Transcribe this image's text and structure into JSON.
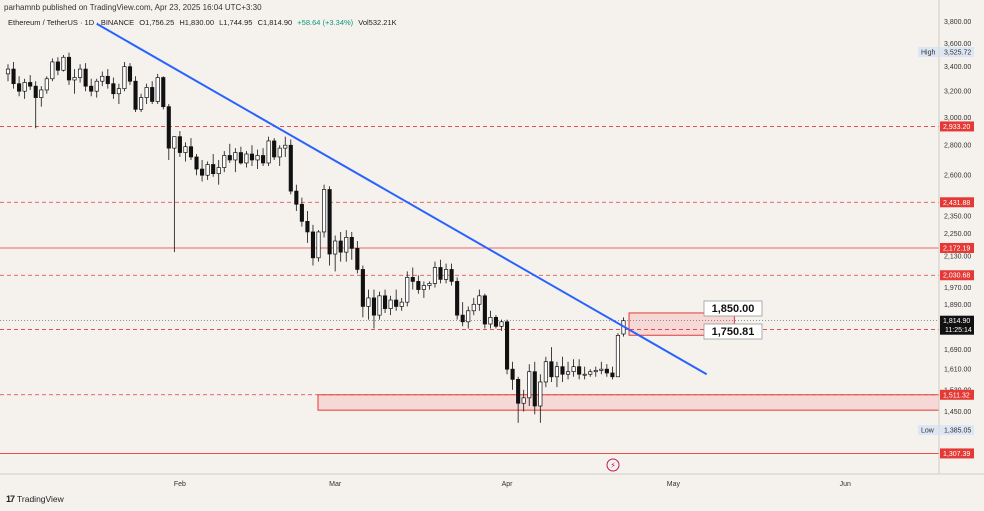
{
  "header": {
    "published": "parhamnb published on TradingView.com, Apr 23, 2025 16:04 UTC+3:30"
  },
  "symbol": {
    "pair": "Ethereum / TetherUS · 1D · BINANCE",
    "open": "O1,756.25",
    "high": "H1,830.00",
    "low": "L1,744.95",
    "close": "C1,814.90",
    "change": "+58.64 (+3.34%)",
    "volume": "Vol532.21K"
  },
  "footer": {
    "brand": "TradingView",
    "logo": "tradingview-logo-icon"
  },
  "colors": {
    "up": "#089981",
    "down": "#000000",
    "trend": "#2962ff",
    "level": "#e53935",
    "zone_fill": "#f7c6c6",
    "background": "#f5f2ed"
  },
  "chart_data": {
    "type": "candlestick",
    "ylim": [
      1280,
      3950
    ],
    "y_ticks": [
      1385.05,
      1450,
      1530,
      1610,
      1690,
      1776.22,
      1814.9,
      1890,
      1970,
      2030.68,
      2130,
      2172.19,
      2250,
      2350,
      2431.88,
      2600,
      2800,
      2933.2,
      3000,
      3200,
      3400,
      3525.72,
      3600,
      3800
    ],
    "y_tick_labels": [
      "1,385.05",
      "1,450.00",
      "1,530.00",
      "1,610.00",
      "1,690.00",
      "1,776.22",
      "1,814.90",
      "1,890.00",
      "1,970.00",
      "2,030.68",
      "2,130.00",
      "2,172.19",
      "2,250.00",
      "2,350.00",
      "2,431.88",
      "2,600.00",
      "2,800.00",
      "2,933.20",
      "3,000.00",
      "3,200.00",
      "3,400.00",
      "3,525.72",
      "3,600.00",
      "3,800.00"
    ],
    "x_labels": [
      "Feb",
      "Mar",
      "Apr",
      "May",
      "Jun"
    ],
    "x_label_day_index": [
      31,
      59,
      90,
      120,
      151
    ],
    "price_tags": {
      "current": {
        "value": 1814.9,
        "label": "1,814.90",
        "countdown": "11:25:14"
      },
      "high": {
        "value": 3525.72,
        "label": "3,525.72",
        "caption": "High"
      },
      "low": {
        "value": 1385.05,
        "label": "1,385.05",
        "caption": "Low"
      }
    },
    "levels": [
      {
        "value": 2933.2,
        "label": "2,933.20",
        "style": "dashed"
      },
      {
        "value": 2431.88,
        "label": "2,431.88",
        "style": "dashed"
      },
      {
        "value": 2172.19,
        "label": "2,172.19",
        "style": "solid"
      },
      {
        "value": 2030.68,
        "label": "2,030.68",
        "style": "dashed"
      },
      {
        "value": 1776.22,
        "label": "1,776.22",
        "style": "dashed"
      },
      {
        "value": 1511.32,
        "label": "1,511.32",
        "style": "dashed"
      },
      {
        "value": 1307.39,
        "label": "1,307.39",
        "style": "solid"
      }
    ],
    "annotations": [
      {
        "text": "1,850.00",
        "value": 1850
      },
      {
        "text": "1,750.81",
        "value": 1750.81
      }
    ],
    "zones": [
      {
        "name": "resistance",
        "from_day": 112,
        "to_day": 131,
        "low": 1750.81,
        "high": 1850
      },
      {
        "name": "support",
        "from_day": 55,
        "to_day": 170,
        "low": 1455,
        "high": 1511.32
      }
    ],
    "trendline": {
      "x": [
        16,
        126
      ],
      "y": [
        3780,
        1590
      ]
    },
    "start_day": 0,
    "candles": [
      [
        3340,
        3420,
        3280,
        3380
      ],
      [
        3380,
        3440,
        3220,
        3260
      ],
      [
        3260,
        3320,
        3160,
        3200
      ],
      [
        3200,
        3300,
        3140,
        3270
      ],
      [
        3270,
        3330,
        3210,
        3240
      ],
      [
        3240,
        3280,
        2920,
        3150
      ],
      [
        3150,
        3240,
        3080,
        3210
      ],
      [
        3210,
        3320,
        3180,
        3300
      ],
      [
        3300,
        3470,
        3280,
        3440
      ],
      [
        3440,
        3480,
        3330,
        3370
      ],
      [
        3370,
        3500,
        3360,
        3480
      ],
      [
        3480,
        3520,
        3250,
        3290
      ],
      [
        3290,
        3380,
        3180,
        3310
      ],
      [
        3310,
        3420,
        3270,
        3380
      ],
      [
        3380,
        3430,
        3200,
        3240
      ],
      [
        3240,
        3300,
        3160,
        3200
      ],
      [
        3200,
        3300,
        3150,
        3280
      ],
      [
        3280,
        3360,
        3240,
        3320
      ],
      [
        3320,
        3380,
        3220,
        3260
      ],
      [
        3260,
        3310,
        3140,
        3180
      ],
      [
        3180,
        3260,
        3100,
        3220
      ],
      [
        3220,
        3440,
        3200,
        3400
      ],
      [
        3400,
        3430,
        3250,
        3280
      ],
      [
        3280,
        3320,
        3040,
        3060
      ],
      [
        3060,
        3180,
        3040,
        3150
      ],
      [
        3150,
        3260,
        3100,
        3230
      ],
      [
        3230,
        3280,
        3100,
        3120
      ],
      [
        3120,
        3340,
        3100,
        3310
      ],
      [
        3310,
        3320,
        3060,
        3080
      ],
      [
        3080,
        3100,
        2700,
        2780
      ],
      [
        2780,
        2860,
        2150,
        2860
      ],
      [
        2860,
        2900,
        2720,
        2750
      ],
      [
        2750,
        2820,
        2690,
        2790
      ],
      [
        2790,
        2850,
        2700,
        2720
      ],
      [
        2720,
        2740,
        2600,
        2640
      ],
      [
        2640,
        2700,
        2560,
        2600
      ],
      [
        2600,
        2690,
        2570,
        2670
      ],
      [
        2670,
        2740,
        2590,
        2610
      ],
      [
        2610,
        2700,
        2540,
        2650
      ],
      [
        2650,
        2760,
        2620,
        2730
      ],
      [
        2730,
        2810,
        2680,
        2700
      ],
      [
        2700,
        2780,
        2620,
        2750
      ],
      [
        2750,
        2790,
        2670,
        2680
      ],
      [
        2680,
        2760,
        2650,
        2740
      ],
      [
        2740,
        2800,
        2660,
        2700
      ],
      [
        2700,
        2770,
        2640,
        2730
      ],
      [
        2730,
        2780,
        2660,
        2680
      ],
      [
        2680,
        2860,
        2660,
        2830
      ],
      [
        2830,
        2850,
        2700,
        2720
      ],
      [
        2720,
        2800,
        2660,
        2780
      ],
      [
        2780,
        2860,
        2720,
        2800
      ],
      [
        2800,
        2840,
        2480,
        2500
      ],
      [
        2500,
        2540,
        2380,
        2420
      ],
      [
        2420,
        2460,
        2290,
        2320
      ],
      [
        2320,
        2380,
        2200,
        2260
      ],
      [
        2260,
        2300,
        2080,
        2120
      ],
      [
        2120,
        2270,
        2100,
        2260
      ],
      [
        2260,
        2540,
        2230,
        2510
      ],
      [
        2510,
        2530,
        2080,
        2140
      ],
      [
        2140,
        2240,
        2050,
        2210
      ],
      [
        2210,
        2260,
        2100,
        2150
      ],
      [
        2150,
        2270,
        2100,
        2230
      ],
      [
        2230,
        2260,
        2110,
        2170
      ],
      [
        2170,
        2210,
        2040,
        2060
      ],
      [
        2060,
        2080,
        1830,
        1880
      ],
      [
        1880,
        1960,
        1820,
        1920
      ],
      [
        1920,
        1960,
        1780,
        1840
      ],
      [
        1840,
        1950,
        1820,
        1930
      ],
      [
        1930,
        1960,
        1850,
        1870
      ],
      [
        1870,
        1930,
        1840,
        1910
      ],
      [
        1910,
        1960,
        1860,
        1880
      ],
      [
        1880,
        1920,
        1860,
        1900
      ],
      [
        1900,
        2050,
        1880,
        2020
      ],
      [
        2020,
        2070,
        1960,
        2000
      ],
      [
        2000,
        2030,
        1940,
        1960
      ],
      [
        1960,
        2000,
        1920,
        1980
      ],
      [
        1980,
        2000,
        1960,
        1990
      ],
      [
        1990,
        2100,
        1970,
        2070
      ],
      [
        2070,
        2110,
        1990,
        2010
      ],
      [
        2010,
        2090,
        1990,
        2060
      ],
      [
        2060,
        2090,
        1980,
        2000
      ],
      [
        2000,
        2020,
        1820,
        1840
      ],
      [
        1840,
        1900,
        1790,
        1810
      ],
      [
        1810,
        1880,
        1780,
        1860
      ],
      [
        1860,
        1920,
        1840,
        1890
      ],
      [
        1890,
        1960,
        1860,
        1930
      ],
      [
        1930,
        1940,
        1780,
        1800
      ],
      [
        1800,
        1860,
        1780,
        1830
      ],
      [
        1830,
        1840,
        1780,
        1790
      ],
      [
        1790,
        1820,
        1770,
        1810
      ],
      [
        1810,
        1820,
        1590,
        1610
      ],
      [
        1610,
        1640,
        1530,
        1570
      ],
      [
        1570,
        1580,
        1410,
        1480
      ],
      [
        1480,
        1530,
        1450,
        1500
      ],
      [
        1500,
        1630,
        1470,
        1600
      ],
      [
        1600,
        1640,
        1440,
        1470
      ],
      [
        1470,
        1590,
        1410,
        1560
      ],
      [
        1560,
        1660,
        1540,
        1640
      ],
      [
        1640,
        1700,
        1560,
        1580
      ],
      [
        1580,
        1640,
        1540,
        1620
      ],
      [
        1620,
        1660,
        1560,
        1590
      ],
      [
        1590,
        1640,
        1570,
        1600
      ],
      [
        1600,
        1650,
        1580,
        1620
      ],
      [
        1620,
        1650,
        1570,
        1590
      ],
      [
        1590,
        1620,
        1570,
        1590
      ],
      [
        1590,
        1610,
        1580,
        1600
      ],
      [
        1600,
        1620,
        1580,
        1605
      ],
      [
        1605,
        1640,
        1590,
        1610
      ],
      [
        1610,
        1630,
        1580,
        1595
      ],
      [
        1595,
        1620,
        1570,
        1580
      ],
      [
        1580,
        1760,
        1580,
        1750
      ],
      [
        1756.25,
        1830,
        1744.95,
        1814.9
      ]
    ]
  }
}
